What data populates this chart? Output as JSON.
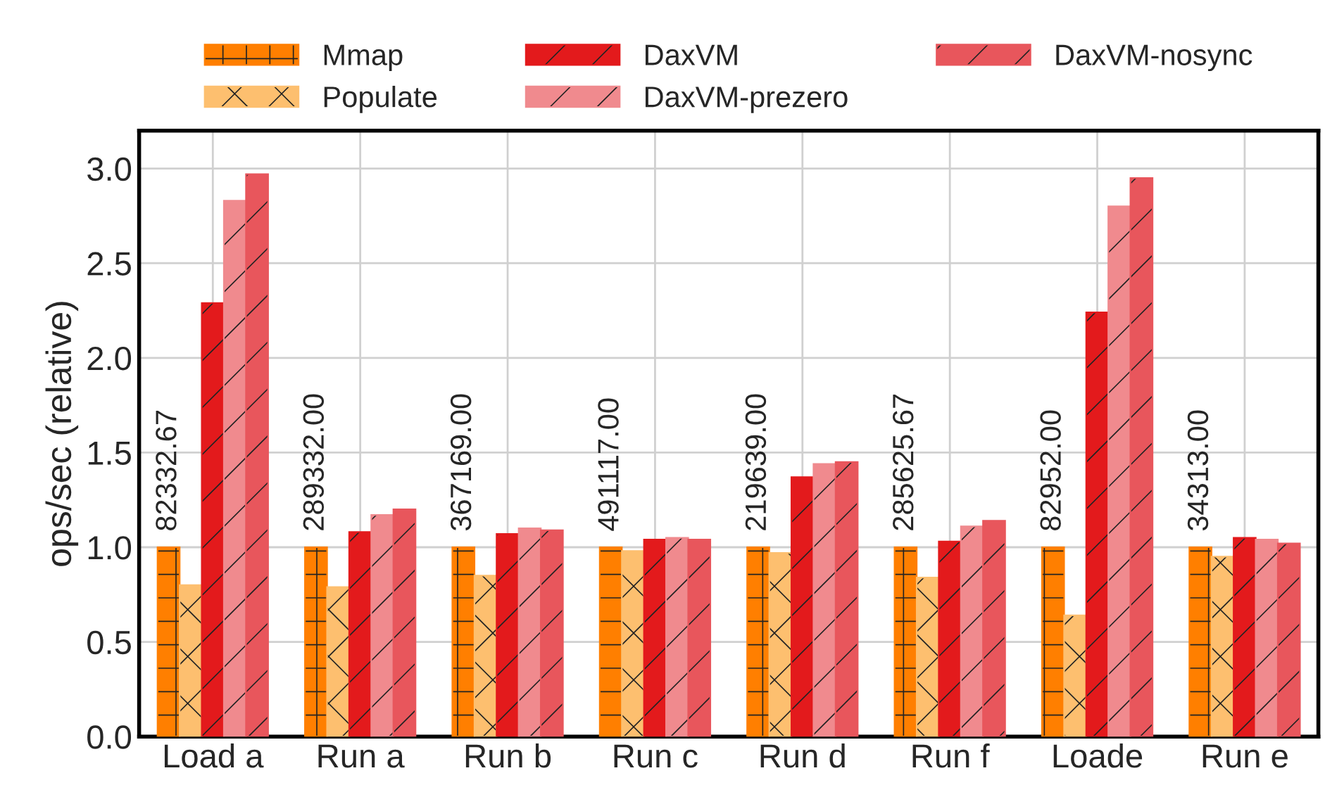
{
  "chart_data": {
    "type": "bar",
    "ylabel": "ops/sec (relative)",
    "categories": [
      "Load a",
      "Run a",
      "Run b",
      "Run c",
      "Run d",
      "Run f",
      "Loade",
      "Run e"
    ],
    "series": [
      {
        "name": "Mmap",
        "color": "#ff7f00",
        "values": [
          1.0,
          1.0,
          1.0,
          1.0,
          1.0,
          1.0,
          1.0,
          1.0
        ]
      },
      {
        "name": "Populate",
        "color": "#fdbf6f",
        "values": [
          0.8,
          0.79,
          0.85,
          0.98,
          0.97,
          0.84,
          0.64,
          0.95
        ]
      },
      {
        "name": "DaxVM",
        "color": "#e31a1c",
        "values": [
          2.29,
          1.08,
          1.07,
          1.04,
          1.37,
          1.03,
          2.24,
          1.05
        ]
      },
      {
        "name": "DaxVM-prezero",
        "color": "#f08a8e",
        "values": [
          2.83,
          1.17,
          1.1,
          1.05,
          1.44,
          1.11,
          2.8,
          1.04
        ]
      },
      {
        "name": "DaxVM-nosync",
        "color": "#e8565c",
        "values": [
          2.97,
          1.2,
          1.09,
          1.04,
          1.45,
          1.14,
          2.95,
          1.02
        ]
      }
    ],
    "ylim": [
      0,
      3.2
    ],
    "yticks": [
      {
        "value": 0,
        "label": "0.0"
      },
      {
        "value": 0.5,
        "label": "0.5"
      },
      {
        "value": 1,
        "label": "1.0"
      },
      {
        "value": 1.5,
        "label": "1.5"
      },
      {
        "value": 2,
        "label": "2.0"
      },
      {
        "value": 2.5,
        "label": "2.5"
      },
      {
        "value": 3,
        "label": "3.0"
      }
    ],
    "annotations": [
      "82332.67",
      "289332.00",
      "367169.00",
      "491117.00",
      "219639.00",
      "285625.67",
      "82952.00",
      "34313.00"
    ],
    "grid": true,
    "legend": "top"
  }
}
